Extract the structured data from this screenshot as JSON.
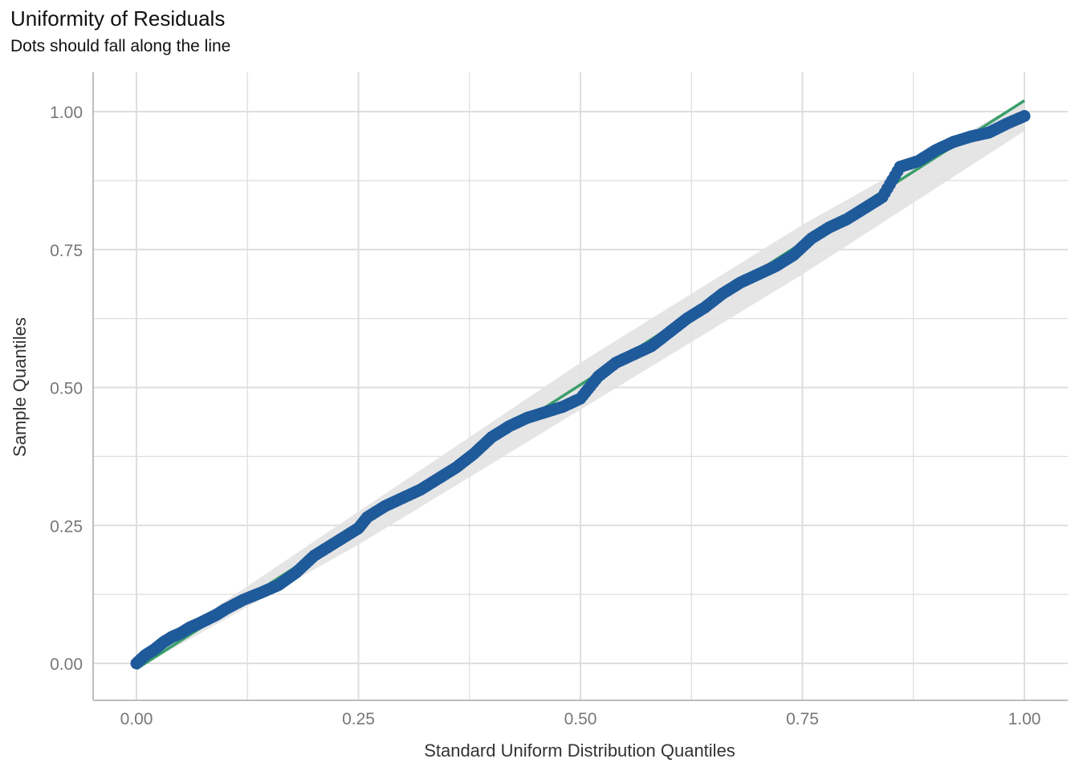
{
  "chart_data": {
    "type": "scatter",
    "title": "Uniformity of Residuals",
    "subtitle": "Dots should fall along the line",
    "xlabel": "Standard Uniform Distribution Quantiles",
    "ylabel": "Sample Quantiles",
    "xlim": [
      -0.1,
      1.05
    ],
    "ylim": [
      -0.07,
      1.07
    ],
    "x_ticks": [
      "0.00",
      "0.25",
      "0.50",
      "0.75",
      "1.00"
    ],
    "y_ticks": [
      "0.00",
      "0.25",
      "0.50",
      "0.75",
      "1.00"
    ],
    "grid": true,
    "colors": {
      "points": "#1f5a9a",
      "reference_line": "#3a9e6b",
      "band": "#e2e2e2",
      "grid": "#dedede"
    },
    "reference_line": {
      "x": [
        0,
        1
      ],
      "y": [
        -0.01,
        1.02
      ]
    },
    "confidence_band": {
      "x": [
        0.0,
        0.25,
        0.5,
        0.75,
        1.0
      ],
      "lower": [
        -0.01,
        0.215,
        0.46,
        0.705,
        0.965
      ],
      "upper": [
        0.005,
        0.275,
        0.545,
        0.795,
        1.02
      ]
    },
    "series": [
      {
        "x": [
          0.0,
          0.01,
          0.02,
          0.03,
          0.04,
          0.05,
          0.06,
          0.07,
          0.08,
          0.09,
          0.1,
          0.12,
          0.14,
          0.16,
          0.18,
          0.2,
          0.22,
          0.24,
          0.25,
          0.26,
          0.28,
          0.3,
          0.32,
          0.34,
          0.36,
          0.38,
          0.4,
          0.42,
          0.44,
          0.46,
          0.48,
          0.5,
          0.52,
          0.54,
          0.56,
          0.58,
          0.6,
          0.62,
          0.64,
          0.66,
          0.68,
          0.7,
          0.72,
          0.74,
          0.76,
          0.78,
          0.8,
          0.82,
          0.84,
          0.86,
          0.88,
          0.9,
          0.92,
          0.94,
          0.96,
          0.98,
          1.0
        ],
        "y": [
          0.0,
          0.015,
          0.025,
          0.038,
          0.048,
          0.055,
          0.065,
          0.072,
          0.08,
          0.088,
          0.098,
          0.115,
          0.128,
          0.142,
          0.165,
          0.195,
          0.215,
          0.235,
          0.245,
          0.265,
          0.285,
          0.3,
          0.315,
          0.335,
          0.355,
          0.38,
          0.41,
          0.43,
          0.445,
          0.455,
          0.465,
          0.48,
          0.52,
          0.545,
          0.56,
          0.575,
          0.6,
          0.625,
          0.645,
          0.67,
          0.69,
          0.705,
          0.72,
          0.74,
          0.77,
          0.79,
          0.805,
          0.825,
          0.845,
          0.9,
          0.91,
          0.93,
          0.945,
          0.955,
          0.962,
          0.978,
          0.992
        ]
      }
    ]
  }
}
